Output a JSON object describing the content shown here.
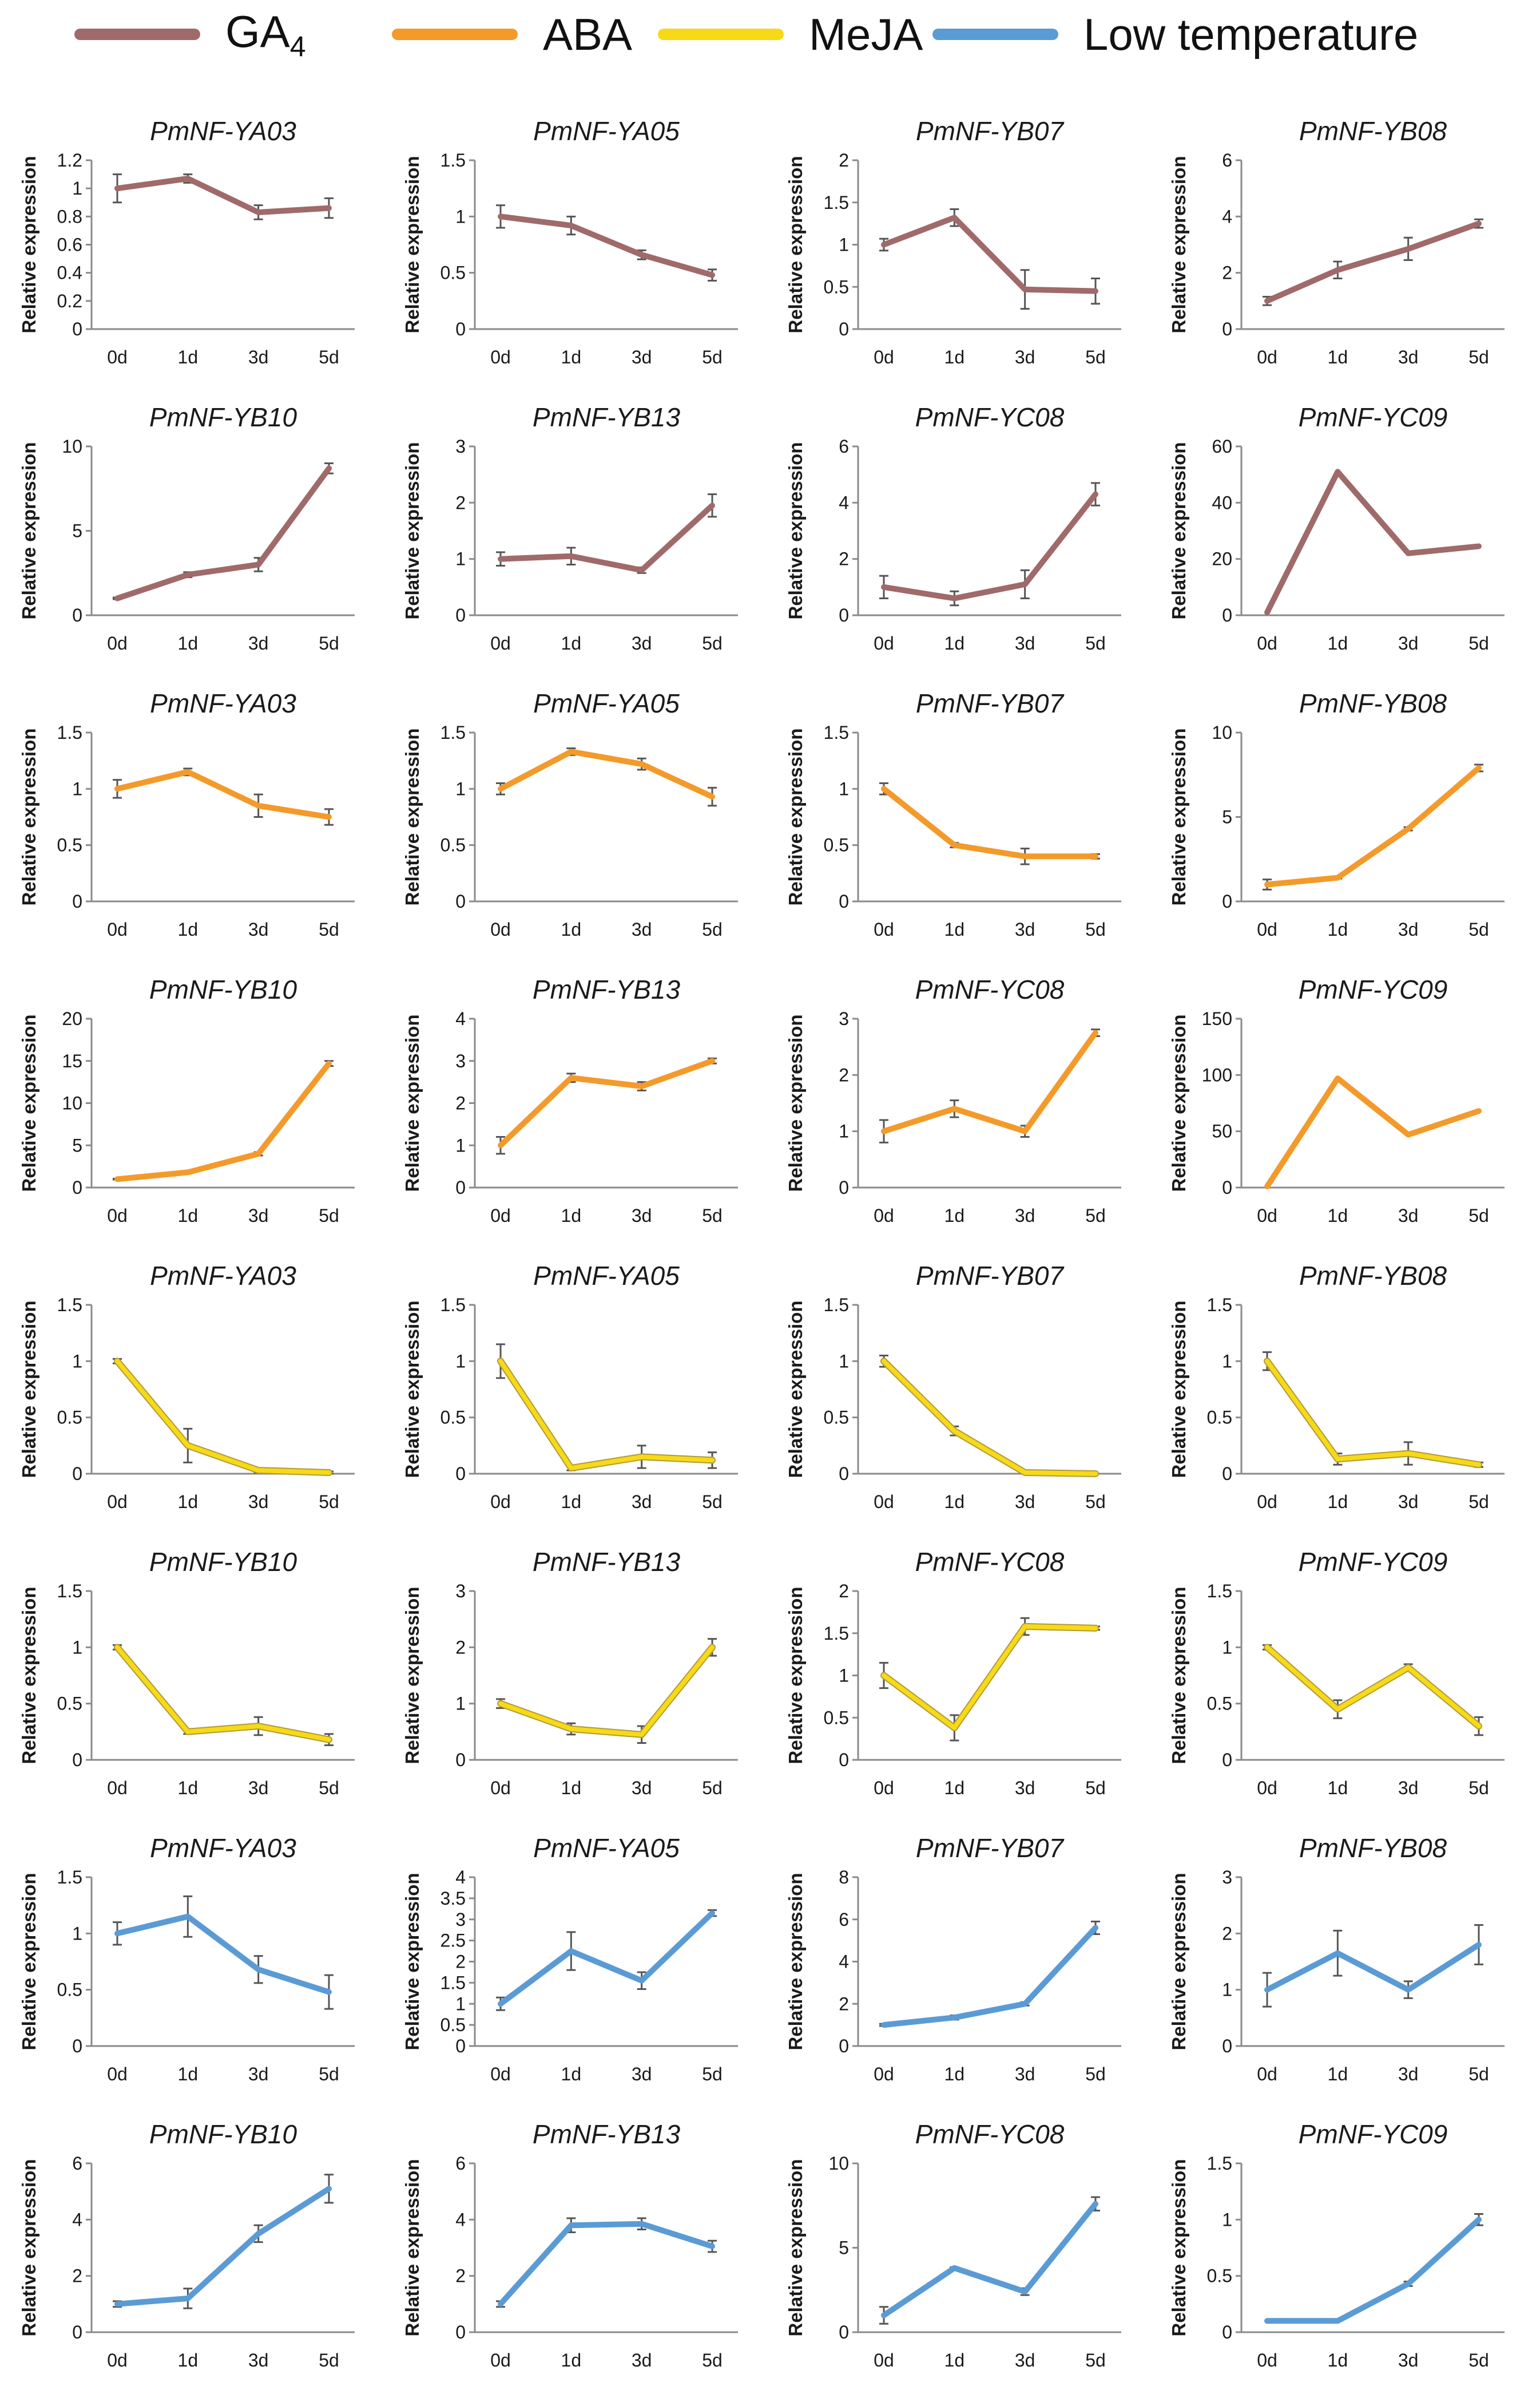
{
  "legend": [
    {
      "id": "GA4",
      "label": "GA",
      "sub": "4",
      "color": "#A06A6A"
    },
    {
      "id": "ABA",
      "label": "ABA",
      "color": "#F39A2B"
    },
    {
      "id": "MeJA",
      "label": "MeJA",
      "color": "#F7D917"
    },
    {
      "id": "LT",
      "label": "Low temperature",
      "color": "#5B9BD5"
    }
  ],
  "chart_data": [
    {
      "type": "line",
      "treatment": "GA4",
      "title": "PmNF-YA03",
      "ylabel": "Relative expression",
      "categories": [
        "0d",
        "1d",
        "3d",
        "5d"
      ],
      "values": [
        1.0,
        1.07,
        0.83,
        0.86
      ],
      "errors": [
        0.1,
        0.03,
        0.05,
        0.07
      ],
      "ylim": [
        0,
        1.2
      ],
      "yticks": [
        "0",
        "0.2",
        "0.4",
        "0.6",
        "0.8",
        "1",
        "1.2"
      ]
    },
    {
      "type": "line",
      "treatment": "GA4",
      "title": "PmNF-YA05",
      "ylabel": "Relative expression",
      "categories": [
        "0d",
        "1d",
        "3d",
        "5d"
      ],
      "values": [
        1.0,
        0.92,
        0.66,
        0.48
      ],
      "errors": [
        0.1,
        0.08,
        0.04,
        0.05
      ],
      "ylim": [
        0,
        1.5
      ],
      "yticks": [
        "0",
        "0.5",
        "1",
        "1.5"
      ]
    },
    {
      "type": "line",
      "treatment": "GA4",
      "title": "PmNF-YB07",
      "ylabel": "Relative expression",
      "categories": [
        "0d",
        "1d",
        "3d",
        "5d"
      ],
      "values": [
        1.0,
        1.32,
        0.47,
        0.45
      ],
      "errors": [
        0.07,
        0.1,
        0.23,
        0.15
      ],
      "ylim": [
        0,
        2
      ],
      "yticks": [
        "0",
        "0.5",
        "1",
        "1.5",
        "2"
      ]
    },
    {
      "type": "line",
      "treatment": "GA4",
      "title": "PmNF-YB08",
      "ylabel": "Relative expression",
      "categories": [
        "0d",
        "1d",
        "3d",
        "5d"
      ],
      "values": [
        1.0,
        2.1,
        2.85,
        3.75
      ],
      "errors": [
        0.15,
        0.3,
        0.4,
        0.15
      ],
      "ylim": [
        0,
        6
      ],
      "yticks": [
        "0",
        "2",
        "4",
        "6"
      ]
    },
    {
      "type": "line",
      "treatment": "GA4",
      "title": "PmNF-YB10",
      "ylabel": "Relative expression",
      "categories": [
        "0d",
        "1d",
        "3d",
        "5d"
      ],
      "values": [
        1.0,
        2.4,
        3.0,
        8.7
      ],
      "errors": [
        0.05,
        0.15,
        0.4,
        0.3
      ],
      "ylim": [
        0,
        10
      ],
      "yticks": [
        "0",
        "5",
        "10"
      ]
    },
    {
      "type": "line",
      "treatment": "GA4",
      "title": "PmNF-YB13",
      "ylabel": "Relative expression",
      "categories": [
        "0d",
        "1d",
        "3d",
        "5d"
      ],
      "values": [
        1.0,
        1.05,
        0.8,
        1.95
      ],
      "errors": [
        0.12,
        0.15,
        0.05,
        0.2
      ],
      "ylim": [
        0,
        3
      ],
      "yticks": [
        "0",
        "1",
        "2",
        "3"
      ]
    },
    {
      "type": "line",
      "treatment": "GA4",
      "title": "PmNF-YC08",
      "ylabel": "Relative expression",
      "categories": [
        "0d",
        "1d",
        "3d",
        "5d"
      ],
      "values": [
        1.0,
        0.6,
        1.1,
        4.3
      ],
      "errors": [
        0.4,
        0.25,
        0.5,
        0.4
      ],
      "ylim": [
        0,
        6
      ],
      "yticks": [
        "0",
        "2",
        "4",
        "6"
      ]
    },
    {
      "type": "line",
      "treatment": "GA4",
      "title": "PmNF-YC09",
      "ylabel": "Relative expression",
      "categories": [
        "0d",
        "1d",
        "3d",
        "5d"
      ],
      "values": [
        1.0,
        51,
        22,
        24.5
      ],
      "errors": [
        0,
        0,
        0,
        0
      ],
      "ylim": [
        0,
        60
      ],
      "yticks": [
        "0",
        "20",
        "40",
        "60"
      ]
    },
    {
      "type": "line",
      "treatment": "ABA",
      "title": "PmNF-YA03",
      "ylabel": "Relative expression",
      "categories": [
        "0d",
        "1d",
        "3d",
        "5d"
      ],
      "values": [
        1.0,
        1.15,
        0.85,
        0.75
      ],
      "errors": [
        0.08,
        0.03,
        0.1,
        0.07
      ],
      "ylim": [
        0,
        1.5
      ],
      "yticks": [
        "0",
        "0.5",
        "1",
        "1.5"
      ]
    },
    {
      "type": "line",
      "treatment": "ABA",
      "title": "PmNF-YA05",
      "ylabel": "Relative expression",
      "categories": [
        "0d",
        "1d",
        "3d",
        "5d"
      ],
      "values": [
        1.0,
        1.33,
        1.22,
        0.93
      ],
      "errors": [
        0.05,
        0.03,
        0.05,
        0.08
      ],
      "ylim": [
        0,
        1.5
      ],
      "yticks": [
        "0",
        "0.5",
        "1",
        "1.5"
      ]
    },
    {
      "type": "line",
      "treatment": "ABA",
      "title": "PmNF-YB07",
      "ylabel": "Relative expression",
      "categories": [
        "0d",
        "1d",
        "3d",
        "5d"
      ],
      "values": [
        1.0,
        0.5,
        0.4,
        0.4
      ],
      "errors": [
        0.05,
        0.02,
        0.07,
        0.02
      ],
      "ylim": [
        0,
        1.5
      ],
      "yticks": [
        "0",
        "0.5",
        "1",
        "1.5"
      ]
    },
    {
      "type": "line",
      "treatment": "ABA",
      "title": "PmNF-YB08",
      "ylabel": "Relative expression",
      "categories": [
        "0d",
        "1d",
        "3d",
        "5d"
      ],
      "values": [
        1.0,
        1.4,
        4.3,
        7.9
      ],
      "errors": [
        0.3,
        0.05,
        0.1,
        0.2
      ],
      "ylim": [
        0,
        10
      ],
      "yticks": [
        "0",
        "5",
        "10"
      ]
    },
    {
      "type": "line",
      "treatment": "ABA",
      "title": "PmNF-YB10",
      "ylabel": "Relative expression",
      "categories": [
        "0d",
        "1d",
        "3d",
        "5d"
      ],
      "values": [
        1.0,
        1.8,
        4.0,
        14.7
      ],
      "errors": [
        0.05,
        0.1,
        0.2,
        0.3
      ],
      "ylim": [
        0,
        20
      ],
      "yticks": [
        "0",
        "5",
        "10",
        "15",
        "20"
      ]
    },
    {
      "type": "line",
      "treatment": "ABA",
      "title": "PmNF-YB13",
      "ylabel": "Relative expression",
      "categories": [
        "0d",
        "1d",
        "3d",
        "5d"
      ],
      "values": [
        1.0,
        2.6,
        2.4,
        3.0
      ],
      "errors": [
        0.2,
        0.1,
        0.1,
        0.06
      ],
      "ylim": [
        0,
        4
      ],
      "yticks": [
        "0",
        "1",
        "2",
        "3",
        "4"
      ]
    },
    {
      "type": "line",
      "treatment": "ABA",
      "title": "PmNF-YC08",
      "ylabel": "Relative expression",
      "categories": [
        "0d",
        "1d",
        "3d",
        "5d"
      ],
      "values": [
        1.0,
        1.4,
        1.0,
        2.75
      ],
      "errors": [
        0.2,
        0.15,
        0.1,
        0.06
      ],
      "ylim": [
        0,
        3
      ],
      "yticks": [
        "0",
        "1",
        "2",
        "3"
      ]
    },
    {
      "type": "line",
      "treatment": "ABA",
      "title": "PmNF-YC09",
      "ylabel": "Relative expression",
      "categories": [
        "0d",
        "1d",
        "3d",
        "5d"
      ],
      "values": [
        1.0,
        97,
        47,
        68
      ],
      "errors": [
        0,
        0,
        0,
        0
      ],
      "ylim": [
        0,
        150
      ],
      "yticks": [
        "0",
        "50",
        "100",
        "150"
      ]
    },
    {
      "type": "line",
      "treatment": "MeJA",
      "title": "PmNF-YA03",
      "ylabel": "Relative expression",
      "categories": [
        "0d",
        "1d",
        "3d",
        "5d"
      ],
      "values": [
        1.0,
        0.25,
        0.03,
        0.01
      ],
      "errors": [
        0.02,
        0.15,
        0.02,
        0.01
      ],
      "ylim": [
        0,
        1.5
      ],
      "yticks": [
        "0",
        "0.5",
        "1",
        "1.5"
      ]
    },
    {
      "type": "line",
      "treatment": "MeJA",
      "title": "PmNF-YA05",
      "ylabel": "Relative expression",
      "categories": [
        "0d",
        "1d",
        "3d",
        "5d"
      ],
      "values": [
        1.0,
        0.05,
        0.15,
        0.12
      ],
      "errors": [
        0.15,
        0.02,
        0.1,
        0.07
      ],
      "ylim": [
        0,
        1.5
      ],
      "yticks": [
        "0",
        "0.5",
        "1",
        "1.5"
      ]
    },
    {
      "type": "line",
      "treatment": "MeJA",
      "title": "PmNF-YB07",
      "ylabel": "Relative expression",
      "categories": [
        "0d",
        "1d",
        "3d",
        "5d"
      ],
      "values": [
        1.0,
        0.38,
        0.01,
        0.0
      ],
      "errors": [
        0.05,
        0.04,
        0.01,
        0
      ],
      "ylim": [
        0,
        1.5
      ],
      "yticks": [
        "0",
        "0.5",
        "1",
        "1.5"
      ]
    },
    {
      "type": "line",
      "treatment": "MeJA",
      "title": "PmNF-YB08",
      "ylabel": "Relative expression",
      "categories": [
        "0d",
        "1d",
        "3d",
        "5d"
      ],
      "values": [
        1.0,
        0.13,
        0.18,
        0.08
      ],
      "errors": [
        0.08,
        0.05,
        0.1,
        0.02
      ],
      "ylim": [
        0,
        1.5
      ],
      "yticks": [
        "0",
        "0.5",
        "1",
        "1.5"
      ]
    },
    {
      "type": "line",
      "treatment": "MeJA",
      "title": "PmNF-YB10",
      "ylabel": "Relative expression",
      "categories": [
        "0d",
        "1d",
        "3d",
        "5d"
      ],
      "values": [
        1.0,
        0.25,
        0.3,
        0.18
      ],
      "errors": [
        0.02,
        0.02,
        0.08,
        0.05
      ],
      "ylim": [
        0,
        1.5
      ],
      "yticks": [
        "0",
        "0.5",
        "1",
        "1.5"
      ]
    },
    {
      "type": "line",
      "treatment": "MeJA",
      "title": "PmNF-YB13",
      "ylabel": "Relative expression",
      "categories": [
        "0d",
        "1d",
        "3d",
        "5d"
      ],
      "values": [
        1.0,
        0.55,
        0.45,
        2.0
      ],
      "errors": [
        0.08,
        0.1,
        0.15,
        0.15
      ],
      "ylim": [
        0,
        3
      ],
      "yticks": [
        "0",
        "1",
        "2",
        "3"
      ]
    },
    {
      "type": "line",
      "treatment": "MeJA",
      "title": "PmNF-YC08",
      "ylabel": "Relative expression",
      "categories": [
        "0d",
        "1d",
        "3d",
        "5d"
      ],
      "values": [
        1.0,
        0.38,
        1.58,
        1.56
      ],
      "errors": [
        0.15,
        0.15,
        0.1,
        0.02
      ],
      "ylim": [
        0,
        2
      ],
      "yticks": [
        "0",
        "0.5",
        "1",
        "1.5",
        "2"
      ]
    },
    {
      "type": "line",
      "treatment": "MeJA",
      "title": "PmNF-YC09",
      "ylabel": "Relative expression",
      "categories": [
        "0d",
        "1d",
        "3d",
        "5d"
      ],
      "values": [
        1.0,
        0.45,
        0.82,
        0.3
      ],
      "errors": [
        0.02,
        0.08,
        0.03,
        0.08
      ],
      "ylim": [
        0,
        1.5
      ],
      "yticks": [
        "0",
        "0.5",
        "1",
        "1.5"
      ]
    },
    {
      "type": "line",
      "treatment": "LT",
      "title": "PmNF-YA03",
      "ylabel": "Relative expression",
      "categories": [
        "0d",
        "1d",
        "3d",
        "5d"
      ],
      "values": [
        1.0,
        1.15,
        0.68,
        0.48
      ],
      "errors": [
        0.1,
        0.18,
        0.12,
        0.15
      ],
      "ylim": [
        0,
        1.5
      ],
      "yticks": [
        "0",
        "0.5",
        "1",
        "1.5"
      ]
    },
    {
      "type": "line",
      "treatment": "LT",
      "title": "PmNF-YA05",
      "ylabel": "Relative expression",
      "categories": [
        "0d",
        "1d",
        "3d",
        "5d"
      ],
      "values": [
        1.0,
        2.25,
        1.55,
        3.15
      ],
      "errors": [
        0.15,
        0.45,
        0.2,
        0.07
      ],
      "ylim": [
        0,
        4
      ],
      "yticks": [
        "0",
        "0.5",
        "1",
        "1.5",
        "2",
        "2.5",
        "3",
        "3.5",
        "4"
      ]
    },
    {
      "type": "line",
      "treatment": "LT",
      "title": "PmNF-YB07",
      "ylabel": "Relative expression",
      "categories": [
        "0d",
        "1d",
        "3d",
        "5d"
      ],
      "values": [
        1.0,
        1.35,
        2.0,
        5.6
      ],
      "errors": [
        0.05,
        0.1,
        0.08,
        0.3
      ],
      "ylim": [
        0,
        8
      ],
      "yticks": [
        "0",
        "2",
        "4",
        "6",
        "8"
      ]
    },
    {
      "type": "line",
      "treatment": "LT",
      "title": "PmNF-YB08",
      "ylabel": "Relative expression",
      "categories": [
        "0d",
        "1d",
        "3d",
        "5d"
      ],
      "values": [
        1.0,
        1.65,
        1.0,
        1.8
      ],
      "errors": [
        0.3,
        0.4,
        0.15,
        0.35
      ],
      "ylim": [
        0,
        3
      ],
      "yticks": [
        "0",
        "1",
        "2",
        "3"
      ]
    },
    {
      "type": "line",
      "treatment": "LT",
      "title": "PmNF-YB10",
      "ylabel": "Relative expression",
      "categories": [
        "0d",
        "1d",
        "3d",
        "5d"
      ],
      "values": [
        1.0,
        1.2,
        3.5,
        5.1
      ],
      "errors": [
        0.1,
        0.35,
        0.3,
        0.5
      ],
      "ylim": [
        0,
        6
      ],
      "yticks": [
        "0",
        "2",
        "4",
        "6"
      ]
    },
    {
      "type": "line",
      "treatment": "LT",
      "title": "PmNF-YB13",
      "ylabel": "Relative expression",
      "categories": [
        "0d",
        "1d",
        "3d",
        "5d"
      ],
      "values": [
        1.0,
        3.8,
        3.85,
        3.05
      ],
      "errors": [
        0.1,
        0.25,
        0.2,
        0.2
      ],
      "ylim": [
        0,
        6
      ],
      "yticks": [
        "0",
        "2",
        "4",
        "6"
      ]
    },
    {
      "type": "line",
      "treatment": "LT",
      "title": "PmNF-YC08",
      "ylabel": "Relative expression",
      "categories": [
        "0d",
        "1d",
        "3d",
        "5d"
      ],
      "values": [
        1.0,
        3.8,
        2.4,
        7.6
      ],
      "errors": [
        0.5,
        0.05,
        0.2,
        0.4
      ],
      "ylim": [
        0,
        10
      ],
      "yticks": [
        "0",
        "5",
        "10"
      ]
    },
    {
      "type": "line",
      "treatment": "LT",
      "title": "PmNF-YC09",
      "ylabel": "Relative expression",
      "categories": [
        "0d",
        "1d",
        "3d",
        "5d"
      ],
      "values": [
        0.1,
        0.1,
        0.43,
        1.0
      ],
      "errors": [
        0,
        0,
        0.02,
        0.05
      ],
      "ylim": [
        0,
        1.5
      ],
      "yticks": [
        "0",
        "0.5",
        "1",
        "1.5"
      ]
    }
  ]
}
